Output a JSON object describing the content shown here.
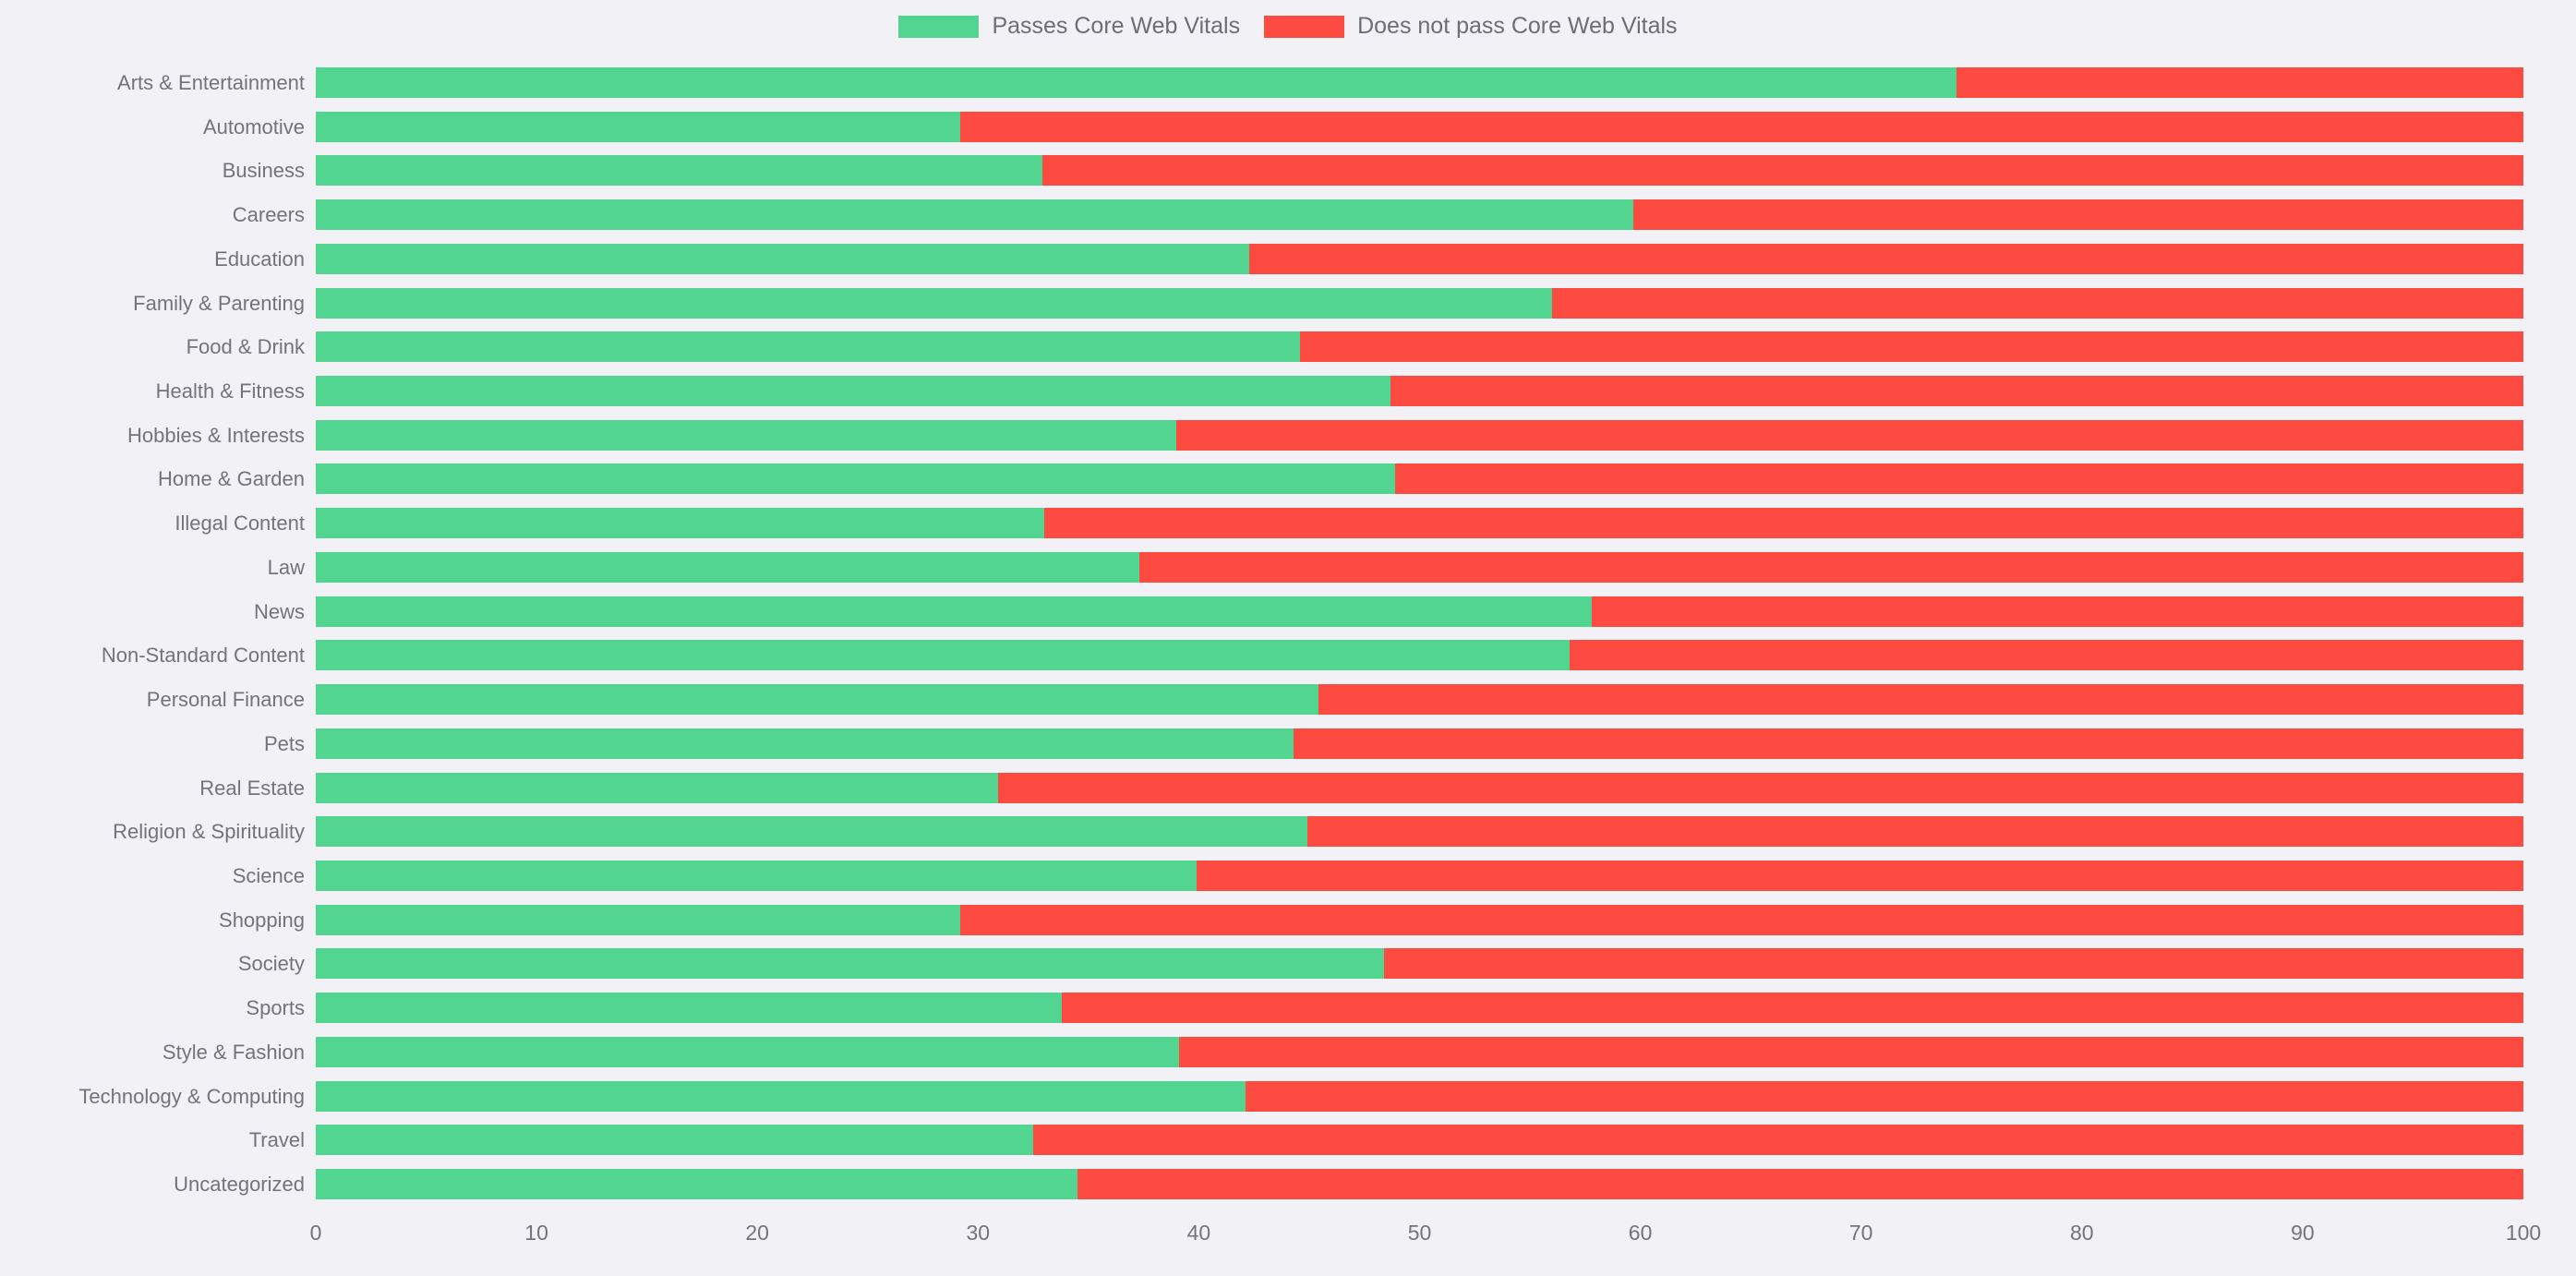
{
  "colors": {
    "background": "#f2f1f6",
    "pass": "#52d591",
    "fail": "#fd4b41",
    "text": "#73737b"
  },
  "legend": {
    "position": "top",
    "items": [
      {
        "label": "Passes Core Web Vitals",
        "color": "#52d591"
      },
      {
        "label": "Does not pass Core Web Vitals",
        "color": "#fd4b41"
      }
    ]
  },
  "chart_data": {
    "type": "bar",
    "orientation": "horizontal",
    "stacked": true,
    "title": "",
    "xlabel": "",
    "ylabel": "",
    "xlim": [
      0,
      100
    ],
    "x_ticks": [
      0,
      10,
      20,
      30,
      40,
      50,
      60,
      70,
      80,
      90,
      100
    ],
    "grid": false,
    "legend_position": "top",
    "categories": [
      "Arts & Entertainment",
      "Automotive",
      "Business",
      "Careers",
      "Education",
      "Family & Parenting",
      "Food & Drink",
      "Health & Fitness",
      "Hobbies & Interests",
      "Home & Garden",
      "Illegal Content",
      "Law",
      "News",
      "Non-Standard Content",
      "Personal Finance",
      "Pets",
      "Real Estate",
      "Religion & Spirituality",
      "Science",
      "Shopping",
      "Society",
      "Sports",
      "Style & Fashion",
      "Technology & Computing",
      "Travel",
      "Uncategorized"
    ],
    "series": [
      {
        "name": "Passes Core Web Vitals",
        "color": "#52d591",
        "values": [
          74.3,
          29.2,
          32.9,
          59.7,
          42.3,
          56.0,
          44.6,
          48.7,
          39.0,
          48.9,
          33.0,
          37.3,
          57.8,
          56.8,
          45.4,
          44.3,
          30.9,
          44.9,
          39.9,
          29.2,
          48.4,
          33.8,
          39.1,
          42.1,
          32.5,
          34.5
        ]
      },
      {
        "name": "Does not pass Core Web Vitals",
        "color": "#fd4b41",
        "values": [
          25.7,
          70.8,
          67.1,
          40.3,
          57.7,
          44.0,
          55.4,
          51.3,
          61.0,
          51.1,
          67.0,
          62.7,
          42.2,
          43.2,
          54.6,
          55.7,
          69.1,
          55.1,
          60.1,
          70.8,
          51.6,
          66.2,
          60.9,
          57.9,
          67.5,
          65.5
        ]
      }
    ]
  }
}
